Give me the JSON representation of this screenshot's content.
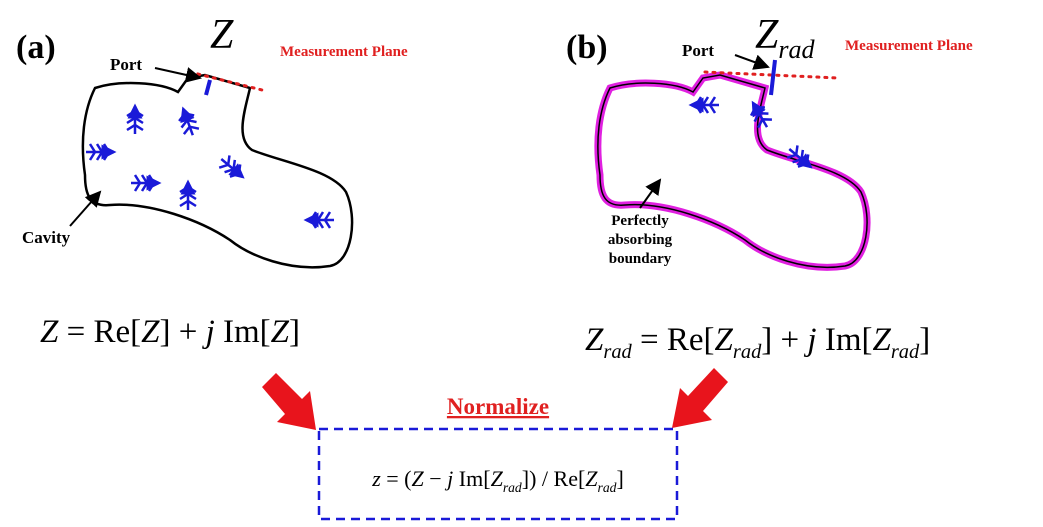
{
  "panel_a": {
    "label": "(a)",
    "impedance": [
      "Z"
    ],
    "port": "Port",
    "measurement_plane": "Measurement Plane",
    "cavity": "Cavity",
    "equation": [
      "Z",
      " = Re[",
      "Z",
      "] + ",
      "j",
      " Im[",
      "Z",
      "]"
    ]
  },
  "panel_b": {
    "label": "(b)",
    "impedance": [
      "Z",
      "rad"
    ],
    "port": "Port",
    "measurement_plane": "Measurement Plane",
    "boundary": [
      "Perfectly",
      "absorbing",
      "boundary"
    ],
    "equation": [
      "Z",
      "rad",
      " = Re[",
      "Z",
      "rad",
      "] + ",
      "j",
      " Im[",
      "Z",
      "rad",
      "]"
    ]
  },
  "normalize": {
    "title": "Normalize",
    "equation": [
      "z",
      " = (",
      "Z",
      " − ",
      "j",
      " Im[",
      "Z",
      "rad",
      "]) / Re[",
      "Z",
      "rad",
      "]"
    ]
  }
}
